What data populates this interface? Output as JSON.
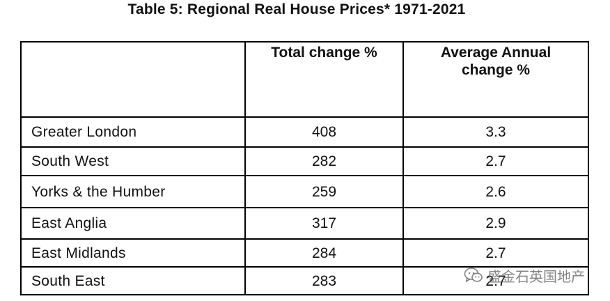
{
  "title": "Table 5: Regional Real House Prices* 1971-2021",
  "table": {
    "headers": [
      "",
      "Total change %",
      "Average  Annual change %"
    ],
    "rows": [
      [
        "Greater London",
        "408",
        "3.3"
      ],
      [
        "South West",
        "282",
        "2.7"
      ],
      [
        "Yorks & the Humber",
        "259",
        "2.6"
      ],
      [
        "East Anglia",
        "317",
        "2.9"
      ],
      [
        "East Midlands",
        "284",
        "2.7"
      ],
      [
        "South East",
        "283",
        "2.7"
      ]
    ]
  },
  "watermark": {
    "text": "盛金石英国地产",
    "icon": "wechat-logo-icon"
  }
}
